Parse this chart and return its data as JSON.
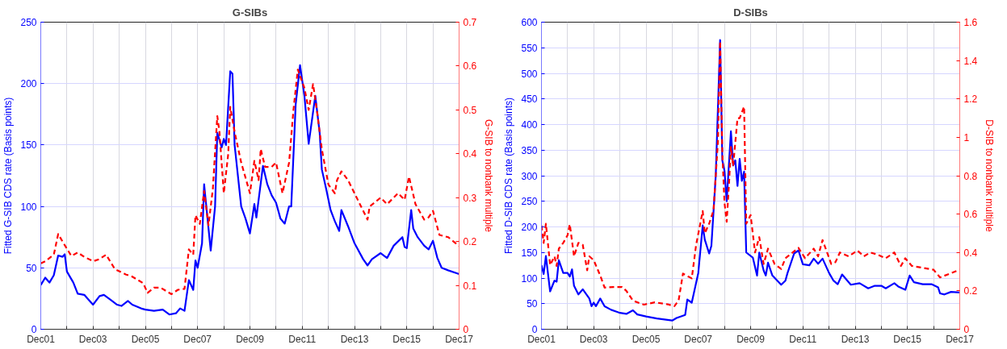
{
  "chart_data": [
    {
      "type": "line",
      "title": "G-SIBs",
      "ylabel": "Fitted G-SIB CDS rate (Basis points)",
      "y2label": "G-SIB to nonbank multiple",
      "xlim": [
        "2001-12",
        "2017-12"
      ],
      "xticks": [
        {
          "value": "2001-12",
          "label": "Dec01"
        },
        {
          "value": "2002-12",
          "label": null
        },
        {
          "value": "2003-12",
          "label": "Dec03"
        },
        {
          "value": "2004-12",
          "label": null
        },
        {
          "value": "2005-12",
          "label": "Dec05"
        },
        {
          "value": "2006-12",
          "label": null
        },
        {
          "value": "2007-12",
          "label": "Dec07"
        },
        {
          "value": "2008-12",
          "label": null
        },
        {
          "value": "2009-12",
          "label": "Dec09"
        },
        {
          "value": "2010-12",
          "label": null
        },
        {
          "value": "2011-12",
          "label": "Dec11"
        },
        {
          "value": "2012-12",
          "label": null
        },
        {
          "value": "2013-12",
          "label": "Dec13"
        },
        {
          "value": "2014-12",
          "label": null
        },
        {
          "value": "2015-12",
          "label": "Dec15"
        },
        {
          "value": "2016-12",
          "label": null
        },
        {
          "value": "2017-12",
          "label": "Dec17"
        }
      ],
      "ylim": [
        0,
        250
      ],
      "yticks": [
        0,
        50,
        100,
        150,
        200,
        250
      ],
      "y2lim": [
        0,
        0.7
      ],
      "y2ticks": [
        0,
        0.1,
        0.2,
        0.3,
        0.4,
        0.5,
        0.6,
        0.7
      ],
      "grid": true,
      "series": [
        {
          "color": "#0000ff",
          "line_style": "solid",
          "axis": "y",
          "x": [
            "2001-12",
            "2002-02",
            "2002-04",
            "2002-06",
            "2002-08",
            "2002-10",
            "2002-11",
            "2002-12",
            "2003-03",
            "2003-05",
            "2003-08",
            "2003-10",
            "2003-12",
            "2004-03",
            "2004-05",
            "2004-08",
            "2004-11",
            "2005-01",
            "2005-04",
            "2005-06",
            "2005-10",
            "2005-12",
            "2006-04",
            "2006-08",
            "2006-11",
            "2007-02",
            "2007-04",
            "2007-06",
            "2007-08",
            "2007-10",
            "2007-11",
            "2007-12",
            "2008-02",
            "2008-03",
            "2008-06",
            "2008-08",
            "2008-09",
            "2008-11",
            "2008-12",
            "2009-01",
            "2009-03",
            "2009-04",
            "2009-05",
            "2009-08",
            "2009-10",
            "2009-12",
            "2010-02",
            "2010-03",
            "2010-06",
            "2010-08",
            "2010-10",
            "2010-12",
            "2011-02",
            "2011-04",
            "2011-06",
            "2011-07",
            "2011-09",
            "2011-11",
            "2012-01",
            "2012-03",
            "2012-06",
            "2012-08",
            "2012-09",
            "2012-11",
            "2013-01",
            "2013-03",
            "2013-05",
            "2013-06",
            "2013-09",
            "2013-12",
            "2014-04",
            "2014-06",
            "2014-08",
            "2014-12",
            "2015-03",
            "2015-06",
            "2015-10",
            "2015-11",
            "2015-12",
            "2016-02",
            "2016-03",
            "2016-05",
            "2016-08",
            "2016-10",
            "2016-12",
            "2017-02",
            "2017-04",
            "2017-07",
            "2017-12"
          ],
          "values": [
            36,
            42,
            38,
            44,
            60,
            59,
            61,
            47,
            38,
            29,
            28,
            24,
            20,
            27,
            28,
            24,
            20,
            19,
            23,
            20,
            17,
            16,
            15,
            16,
            12,
            13,
            17,
            15,
            40,
            32,
            56,
            50,
            70,
            118,
            64,
            100,
            160,
            148,
            155,
            150,
            210,
            208,
            150,
            100,
            90,
            78,
            102,
            91,
            133,
            118,
            109,
            103,
            90,
            86,
            100,
            100,
            183,
            215,
            190,
            151,
            190,
            160,
            130,
            114,
            97,
            88,
            80,
            97,
            84,
            70,
            57,
            52,
            57,
            62,
            58,
            68,
            75,
            67,
            66,
            97,
            82,
            75,
            68,
            65,
            72,
            58,
            50,
            48,
            45
          ]
        },
        {
          "color": "#ff0000",
          "line_style": "dashed",
          "axis": "y2",
          "x": [
            "2001-12",
            "2002-02",
            "2002-06",
            "2002-08",
            "2002-10",
            "2003-02",
            "2003-05",
            "2003-08",
            "2003-12",
            "2004-03",
            "2004-06",
            "2004-10",
            "2005-03",
            "2005-06",
            "2005-11",
            "2006-01",
            "2006-04",
            "2006-07",
            "2006-12",
            "2007-03",
            "2007-06",
            "2007-08",
            "2007-10",
            "2007-11",
            "2008-01",
            "2008-03",
            "2008-05",
            "2008-07",
            "2008-09",
            "2008-10",
            "2008-12",
            "2009-02",
            "2009-03",
            "2009-05",
            "2009-08",
            "2009-12",
            "2010-02",
            "2010-04",
            "2010-05",
            "2010-07",
            "2010-10",
            "2010-12",
            "2011-03",
            "2011-06",
            "2011-08",
            "2011-10",
            "2012-01",
            "2012-03",
            "2012-05",
            "2012-07",
            "2012-09",
            "2012-12",
            "2013-03",
            "2013-04",
            "2013-06",
            "2013-09",
            "2013-12",
            "2014-04",
            "2014-06",
            "2014-07",
            "2014-12",
            "2015-03",
            "2015-08",
            "2015-11",
            "2016-01",
            "2016-04",
            "2016-08",
            "2016-10",
            "2016-12",
            "2017-03",
            "2017-07",
            "2017-12"
          ],
          "values": [
            0.15,
            0.155,
            0.17,
            0.217,
            0.2,
            0.167,
            0.175,
            0.165,
            0.155,
            0.16,
            0.17,
            0.137,
            0.125,
            0.12,
            0.105,
            0.083,
            0.095,
            0.095,
            0.08,
            0.09,
            0.092,
            0.182,
            0.17,
            0.26,
            0.24,
            0.315,
            0.237,
            0.32,
            0.486,
            0.45,
            0.31,
            0.4,
            0.507,
            0.45,
            0.38,
            0.31,
            0.384,
            0.34,
            0.411,
            0.37,
            0.37,
            0.38,
            0.31,
            0.38,
            0.5,
            0.592,
            0.55,
            0.5,
            0.559,
            0.49,
            0.41,
            0.33,
            0.31,
            0.34,
            0.36,
            0.34,
            0.31,
            0.27,
            0.25,
            0.28,
            0.3,
            0.285,
            0.31,
            0.295,
            0.348,
            0.285,
            0.25,
            0.255,
            0.27,
            0.215,
            0.21,
            0.19
          ]
        }
      ]
    },
    {
      "type": "line",
      "title": "D-SIBs",
      "ylabel": "Fitted D-SIB CDS rate (Basis points)",
      "y2label": "D-SIB to nonbank multiple",
      "xlim": [
        "2001-12",
        "2017-12"
      ],
      "xticks": [
        {
          "value": "2001-12",
          "label": "Dec01"
        },
        {
          "value": "2002-12",
          "label": null
        },
        {
          "value": "2003-12",
          "label": "Dec03"
        },
        {
          "value": "2004-12",
          "label": null
        },
        {
          "value": "2005-12",
          "label": "Dec05"
        },
        {
          "value": "2006-12",
          "label": null
        },
        {
          "value": "2007-12",
          "label": "Dec07"
        },
        {
          "value": "2008-12",
          "label": null
        },
        {
          "value": "2009-12",
          "label": "Dec09"
        },
        {
          "value": "2010-12",
          "label": null
        },
        {
          "value": "2011-12",
          "label": "Dec11"
        },
        {
          "value": "2012-12",
          "label": null
        },
        {
          "value": "2013-12",
          "label": "Dec13"
        },
        {
          "value": "2014-12",
          "label": null
        },
        {
          "value": "2015-12",
          "label": "Dec15"
        },
        {
          "value": "2016-12",
          "label": null
        },
        {
          "value": "2017-12",
          "label": "Dec17"
        }
      ],
      "ylim": [
        0,
        600
      ],
      "yticks": [
        0,
        50,
        100,
        150,
        200,
        250,
        300,
        350,
        400,
        450,
        500,
        550,
        600
      ],
      "y2lim": [
        0,
        1.6
      ],
      "y2ticks": [
        0,
        0.2,
        0.4,
        0.6,
        0.8,
        1,
        1.2,
        1.4,
        1.6
      ],
      "grid": true,
      "series": [
        {
          "color": "#0000ff",
          "line_style": "solid",
          "axis": "y",
          "x": [
            "2001-12",
            "2002-01",
            "2002-02",
            "2002-04",
            "2002-06",
            "2002-07",
            "2002-08",
            "2002-10",
            "2002-12",
            "2003-01",
            "2003-02",
            "2003-03",
            "2003-05",
            "2003-07",
            "2003-10",
            "2003-11",
            "2003-12",
            "2004-01",
            "2004-03",
            "2004-05",
            "2004-08",
            "2004-12",
            "2005-03",
            "2005-06",
            "2005-08",
            "2005-12",
            "2006-05",
            "2006-12",
            "2007-02",
            "2007-06",
            "2007-07",
            "2007-09",
            "2007-12",
            "2008-02",
            "2008-03",
            "2008-05",
            "2008-06",
            "2008-08",
            "2008-10",
            "2008-11",
            "2008-12",
            "2009-01",
            "2009-03",
            "2009-04",
            "2009-05",
            "2009-06",
            "2009-07",
            "2009-08",
            "2009-09",
            "2009-10",
            "2010-01",
            "2010-03",
            "2010-04",
            "2010-06",
            "2010-07",
            "2010-08",
            "2010-10",
            "2011-02",
            "2011-04",
            "2011-05",
            "2011-08",
            "2011-10",
            "2011-12",
            "2012-03",
            "2012-05",
            "2012-07",
            "2012-09",
            "2012-12",
            "2013-02",
            "2013-04",
            "2013-06",
            "2013-10",
            "2014-02",
            "2014-06",
            "2014-09",
            "2014-12",
            "2015-02",
            "2015-06",
            "2015-08",
            "2015-11",
            "2016-01",
            "2016-03",
            "2016-07",
            "2016-11",
            "2017-02",
            "2017-03",
            "2017-05",
            "2017-08",
            "2017-12"
          ],
          "values": [
            125,
            108,
            143,
            74,
            95,
            93,
            135,
            110,
            110,
            103,
            117,
            85,
            68,
            78,
            60,
            45,
            52,
            45,
            60,
            45,
            38,
            32,
            30,
            37,
            29,
            25,
            21,
            17,
            22,
            28,
            58,
            52,
            110,
            203,
            175,
            148,
            163,
            300,
            565,
            330,
            310,
            250,
            387,
            320,
            330,
            280,
            333,
            290,
            308,
            150,
            140,
            105,
            150,
            115,
            105,
            130,
            105,
            87,
            95,
            110,
            148,
            154,
            127,
            125,
            138,
            128,
            138,
            110,
            95,
            88,
            107,
            87,
            90,
            80,
            85,
            85,
            80,
            90,
            83,
            77,
            105,
            92,
            88,
            88,
            82,
            70,
            68,
            73,
            72
          ]
        },
        {
          "color": "#ff0000",
          "line_style": "dashed",
          "axis": "y2",
          "x": [
            "2001-12",
            "2002-01",
            "2002-02",
            "2002-03",
            "2002-04",
            "2002-06",
            "2002-07",
            "2002-08",
            "2002-10",
            "2002-12",
            "2003-01",
            "2003-03",
            "2003-05",
            "2003-07",
            "2003-09",
            "2003-10",
            "2003-12",
            "2004-03",
            "2004-05",
            "2004-09",
            "2005-01",
            "2005-03",
            "2005-06",
            "2005-11",
            "2006-04",
            "2006-10",
            "2007-01",
            "2007-03",
            "2007-05",
            "2007-09",
            "2007-11",
            "2008-02",
            "2008-03",
            "2008-05",
            "2008-07",
            "2008-09",
            "2008-10",
            "2008-11",
            "2008-12",
            "2009-01",
            "2009-02",
            "2009-03",
            "2009-04",
            "2009-06",
            "2009-07",
            "2009-09",
            "2009-10",
            "2009-12",
            "2010-02",
            "2010-04",
            "2010-06",
            "2010-08",
            "2010-11",
            "2011-02",
            "2011-04",
            "2011-10",
            "2012-01",
            "2012-05",
            "2012-07",
            "2012-09",
            "2013-01",
            "2013-03",
            "2013-05",
            "2013-09",
            "2014-01",
            "2014-04",
            "2014-07",
            "2014-10",
            "2015-02",
            "2015-06",
            "2015-09",
            "2015-11",
            "2016-02",
            "2016-07",
            "2016-12",
            "2017-03",
            "2017-12"
          ],
          "values": [
            0.54,
            0.45,
            0.55,
            0.45,
            0.334,
            0.38,
            0.33,
            0.42,
            0.45,
            0.49,
            0.547,
            0.38,
            0.45,
            0.44,
            0.307,
            0.38,
            0.36,
            0.28,
            0.217,
            0.22,
            0.22,
            0.2,
            0.149,
            0.128,
            0.14,
            0.13,
            0.12,
            0.15,
            0.29,
            0.265,
            0.44,
            0.616,
            0.5,
            0.55,
            0.62,
            0.98,
            1.5,
            0.92,
            0.66,
            0.56,
            0.75,
            0.95,
            0.85,
            1.1,
            1.1,
            1.16,
            0.55,
            0.595,
            0.4,
            0.48,
            0.34,
            0.42,
            0.34,
            0.314,
            0.37,
            0.424,
            0.37,
            0.42,
            0.38,
            0.465,
            0.34,
            0.35,
            0.4,
            0.38,
            0.41,
            0.38,
            0.4,
            0.39,
            0.37,
            0.4,
            0.33,
            0.37,
            0.33,
            0.32,
            0.31,
            0.27,
            0.31
          ]
        }
      ]
    }
  ]
}
